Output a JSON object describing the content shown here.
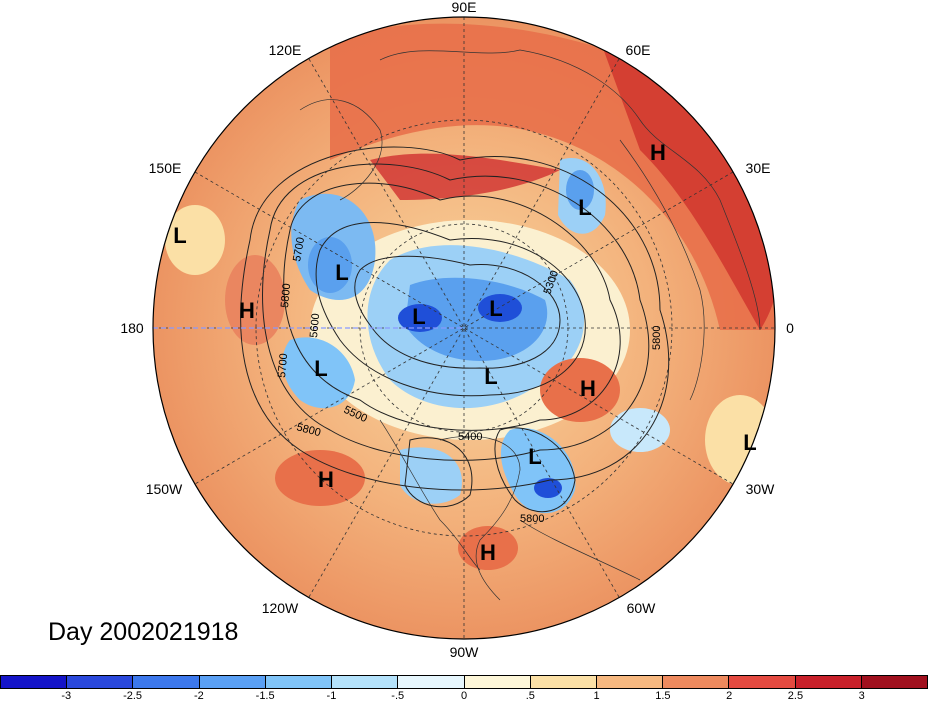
{
  "map": {
    "type": "polar stereographic anomaly map",
    "projection": "north-polar",
    "date_label": "Day 2002021918",
    "longitude_labels": {
      "lon_90e": "90E",
      "lon_60e": "60E",
      "lon_30e": "30E",
      "lon_0": "0",
      "lon_30w": "30W",
      "lon_60w": "60W",
      "lon_90w": "90W",
      "lon_120w": "120W",
      "lon_150w": "150W",
      "lon_180": "180",
      "lon_150e": "150E",
      "lon_120e": "120E"
    },
    "pressure_centers": [
      {
        "type": "H",
        "location": "Scandinavia/Russia"
      },
      {
        "type": "L",
        "location": "Central Asia"
      },
      {
        "type": "L",
        "location": "W Pacific"
      },
      {
        "type": "L",
        "location": "Kamchatka"
      },
      {
        "type": "H",
        "location": "Dateline"
      },
      {
        "type": "L",
        "location": "Arctic Siberia"
      },
      {
        "type": "L",
        "location": "Arctic N Pole"
      },
      {
        "type": "L",
        "location": "Alaska"
      },
      {
        "type": "L",
        "location": "Hudson Bay"
      },
      {
        "type": "H",
        "location": "Greenland"
      },
      {
        "type": "L",
        "location": "E Atlantic"
      },
      {
        "type": "L",
        "location": "US East Coast"
      },
      {
        "type": "H",
        "location": "NE Pacific"
      },
      {
        "type": "H",
        "location": "Central America"
      }
    ],
    "contour_labels": [
      "5700",
      "5800",
      "5600",
      "5700",
      "5500",
      "5800",
      "5400",
      "5300",
      "5800",
      "5800"
    ],
    "colors": {
      "strong_neg": "#1a1ad6",
      "neg": "#5aa0ee",
      "weak_neg": "#c8e8fb",
      "neutral": "#fdf6d8",
      "weak_pos": "#f6c88a",
      "pos": "#ea7a55",
      "strong_pos": "#c6202a"
    }
  },
  "colorbar": {
    "ticks": [
      "-3",
      "-2.5",
      "-2",
      "-1.5",
      "-1",
      "-.5",
      "0",
      ".5",
      "1",
      "1.5",
      "2",
      "2.5",
      "3"
    ],
    "colors": [
      "#1414c8",
      "#2a48dc",
      "#3c78ec",
      "#5aa0f4",
      "#80c4f8",
      "#b4e2fb",
      "#e6f6fd",
      "#fdf6d8",
      "#fbe0a6",
      "#f6b880",
      "#ee8a5e",
      "#e44a40",
      "#c8202a",
      "#a0101e"
    ]
  }
}
